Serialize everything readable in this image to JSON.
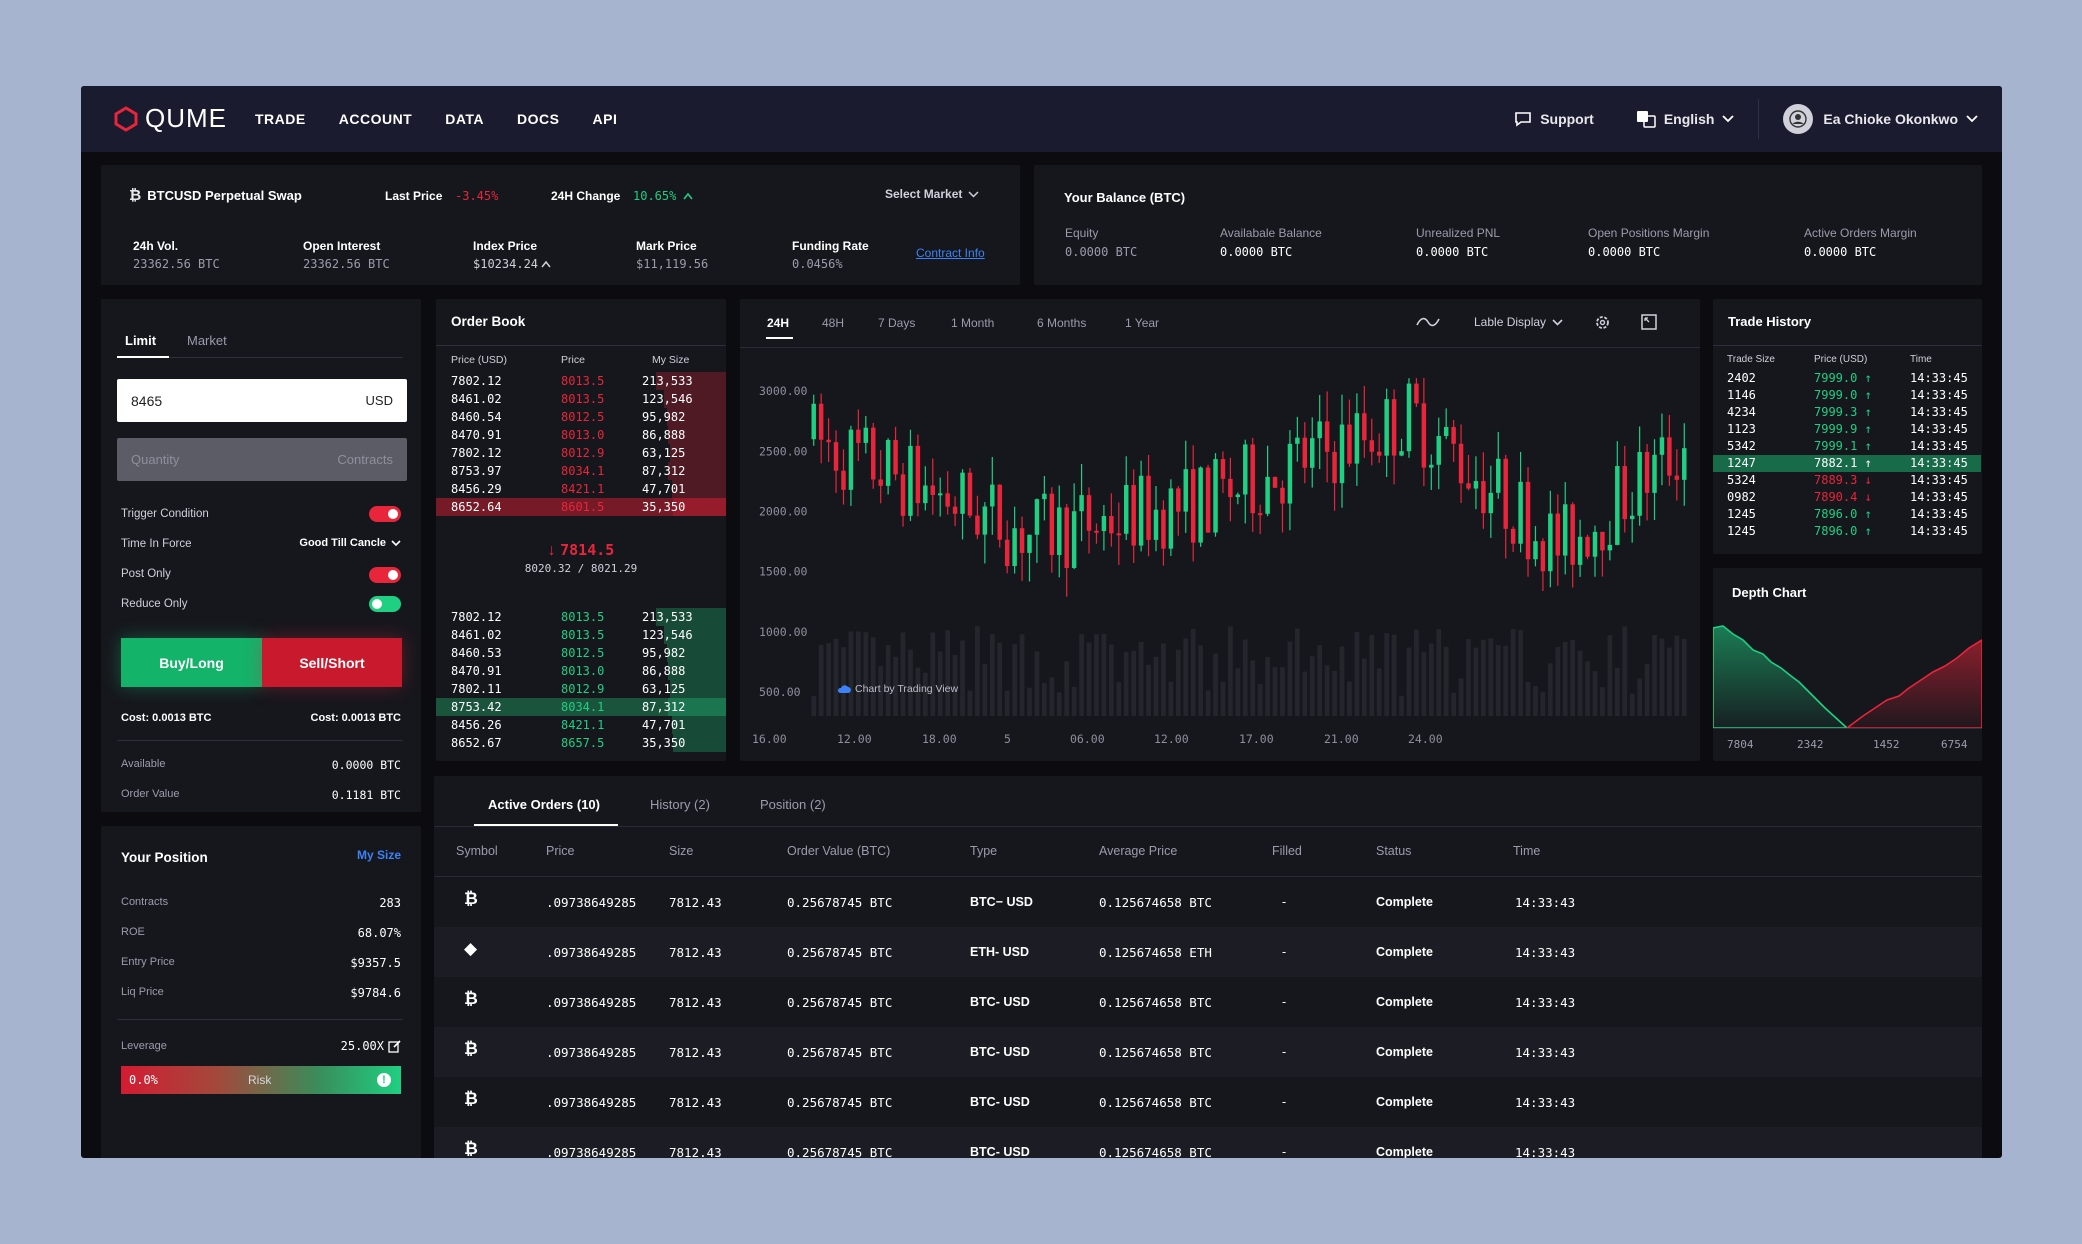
{
  "nav": {
    "brand": "QUME",
    "links": [
      "TRADE",
      "ACCOUNT",
      "DATA",
      "DOCS",
      "API"
    ],
    "support": "Support",
    "language": "English",
    "user": "Ea Chioke Okonkwo"
  },
  "market": {
    "symbol": "BTCUSD Perpetual Swap",
    "last_price_label": "Last Price",
    "last_price": "-3.45%",
    "change_label": "24H Change",
    "change": "10.65%",
    "select_market": "Select Market",
    "stats": [
      {
        "label": "24h Vol.",
        "value": "23362.56 BTC"
      },
      {
        "label": "Open Interest",
        "value": "23362.56 BTC"
      },
      {
        "label": "Index Price",
        "value": "$10234.24"
      },
      {
        "label": "Mark Price",
        "value": "$11,119.56"
      },
      {
        "label": "Funding Rate",
        "value": "0.0456%"
      }
    ],
    "contract_info": "Contract Info"
  },
  "balance": {
    "title": "Your Balance (BTC)",
    "items": [
      {
        "label": "Equity",
        "value": "0.0000 BTC"
      },
      {
        "label": "Availabale Balance",
        "value": "0.0000 BTC"
      },
      {
        "label": "Unrealized PNL",
        "value": "0.0000 BTC"
      },
      {
        "label": "Open Positions Margin",
        "value": "0.0000 BTC"
      },
      {
        "label": "Active Orders Margin",
        "value": "0.0000 BTC"
      }
    ]
  },
  "order_form": {
    "tabs": [
      "Limit",
      "Market"
    ],
    "price_value": "8465",
    "price_unit": "USD",
    "quantity_placeholder": "Quantity",
    "quantity_unit": "Contracts",
    "trigger_condition": "Trigger Condition",
    "time_in_force": "Time In Force",
    "time_in_force_value": "Good Till Cancle",
    "post_only": "Post Only",
    "reduce_only": "Reduce Only",
    "buy": "Buy/Long",
    "sell": "Sell/Short",
    "cost_buy": "Cost: 0.0013 BTC",
    "cost_sell": "Cost: 0.0013  BTC",
    "available_label": "Available",
    "available_value": "0.0000  BTC",
    "order_value_label": "Order Value",
    "order_value": "0.1181  BTC"
  },
  "position": {
    "title": "Your Position",
    "my_size": "My Size",
    "items": [
      {
        "label": "Contracts",
        "value": "283"
      },
      {
        "label": "ROE",
        "value": "68.07%"
      },
      {
        "label": "Entry Price",
        "value": "$9357.5"
      },
      {
        "label": "Liq Price",
        "value": "$9784.6"
      }
    ],
    "leverage_label": "Leverage",
    "leverage_value": "25.00X",
    "risk_pct": "0.0%",
    "risk_label": "Risk"
  },
  "orderbook": {
    "title": "Order Book",
    "headers": [
      "Price (USD)",
      "Price",
      "My Size"
    ],
    "asks": [
      [
        "7802.12",
        "8013.5",
        "213,533"
      ],
      [
        "8461.02",
        "8013.5",
        "123,546"
      ],
      [
        "8460.54",
        "8012.5",
        "95,982"
      ],
      [
        "8470.91",
        "8013.0",
        "86,888"
      ],
      [
        "7802.12",
        "8012.9",
        "63,125"
      ],
      [
        "8753.97",
        "8034.1",
        "87,312"
      ],
      [
        "8456.29",
        "8421.1",
        "47,701"
      ],
      [
        "8652.64",
        "8601.5",
        "35,350"
      ]
    ],
    "mid_price": "7814.5",
    "mid_sub": "8020.32 / 8021.29",
    "bids": [
      [
        "7802.12",
        "8013.5",
        "213,533"
      ],
      [
        "8461.02",
        "8013.5",
        "123,546"
      ],
      [
        "8460.53",
        "8012.5",
        "95,982"
      ],
      [
        "8470.91",
        "8013.0",
        "86,888"
      ],
      [
        "7802.11",
        "8012.9",
        "63,125"
      ],
      [
        "8753.42",
        "8034.1",
        "87,312"
      ],
      [
        "8456.26",
        "8421.1",
        "47,701"
      ],
      [
        "8652.67",
        "8657.5",
        "35,350"
      ]
    ]
  },
  "chart": {
    "ranges": [
      "24H",
      "48H",
      "7 Days",
      "1 Month",
      "6 Months",
      "1 Year"
    ],
    "display": "Lable Display",
    "watermark": "Chart by Trading View"
  },
  "chart_data": {
    "type": "candlestick",
    "y_ticks": [
      "3000.00",
      "2500.00",
      "2000.00",
      "1500.00",
      "1000.00",
      "500.00"
    ],
    "x_ticks": [
      "16.00",
      "12.00",
      "18.00",
      "5",
      "06.00",
      "12.00",
      "17.00",
      "21.00",
      "24.00"
    ],
    "ylim": [
      300,
      3250
    ]
  },
  "trade_history": {
    "title": "Trade History",
    "headers": [
      "Trade Size",
      "Price (USD)",
      "Time"
    ],
    "rows": [
      [
        "2402",
        "7999.0",
        "14:33:45",
        "up"
      ],
      [
        "1146",
        "7999.0",
        "14:33:45",
        "up"
      ],
      [
        "4234",
        "7999.3",
        "14:33:45",
        "up"
      ],
      [
        "1123",
        "7999.9",
        "14:33:45",
        "up"
      ],
      [
        "5342",
        "7999.1",
        "14:33:45",
        "up"
      ],
      [
        "1247",
        "7882.1",
        "14:33:45",
        "up"
      ],
      [
        "5324",
        "7889.3",
        "14:33:45",
        "down"
      ],
      [
        "0982",
        "7890.4",
        "14:33:45",
        "down"
      ],
      [
        "1245",
        "7896.0",
        "14:33:45",
        "up"
      ],
      [
        "1245",
        "7896.0",
        "14:33:45",
        "up"
      ]
    ]
  },
  "depth": {
    "title": "Depth Chart",
    "x_ticks": [
      "7804",
      "2342",
      "1452",
      "6754"
    ]
  },
  "orders": {
    "tabs": [
      "Active Orders (10)",
      "History (2)",
      "Position (2)"
    ],
    "headers": [
      "Symbol",
      "Price",
      "Size",
      "Order Value (BTC)",
      "Type",
      "Average Price",
      "Filled",
      "Status",
      "Time"
    ],
    "rows": [
      {
        "coin": "btc",
        "price": ".09738649285",
        "size": "7812.43",
        "value": "0.25678745 BTC",
        "type": "BTC−  USD",
        "avg": "0.125674658 BTC",
        "filled": "-",
        "status": "Complete",
        "time": "14:33:43"
      },
      {
        "coin": "eth",
        "price": ".09738649285",
        "size": "7812.43",
        "value": "0.25678745 BTC",
        "type": "ETH- USD",
        "avg": "0.125674658 ETH",
        "filled": "-",
        "status": "Complete",
        "time": "14:33:43"
      },
      {
        "coin": "btc",
        "price": ".09738649285",
        "size": "7812.43",
        "value": "0.25678745 BTC",
        "type": "BTC- USD",
        "avg": "0.125674658 BTC",
        "filled": "-",
        "status": "Complete",
        "time": "14:33:43"
      },
      {
        "coin": "btc",
        "price": ".09738649285",
        "size": "7812.43",
        "value": "0.25678745 BTC",
        "type": "BTC- USD",
        "avg": "0.125674658 BTC",
        "filled": "-",
        "status": "Complete",
        "time": "14:33:43"
      },
      {
        "coin": "btc",
        "price": ".09738649285",
        "size": "7812.43",
        "value": "0.25678745 BTC",
        "type": "BTC- USD",
        "avg": "0.125674658 BTC",
        "filled": "-",
        "status": "Complete",
        "time": "14:33:43"
      },
      {
        "coin": "btc",
        "price": ".09738649285",
        "size": "7812.43",
        "value": "0.25678745 BTC",
        "type": "BTC- USD",
        "avg": "0.125674658 BTC",
        "filled": "-",
        "status": "Complete",
        "time": "14:33:43"
      }
    ]
  },
  "colors": {
    "up": "#1fcf82",
    "down": "#e8253a",
    "accent": "#3b82f6"
  }
}
